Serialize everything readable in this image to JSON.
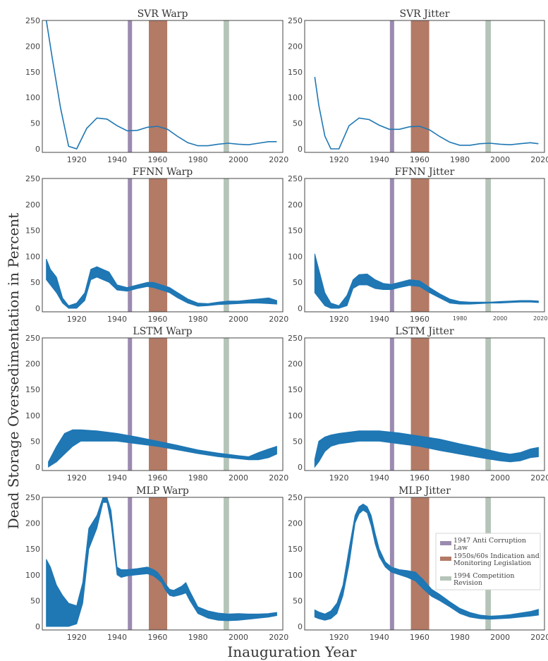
{
  "figure": {
    "ylabel": "Dead Storage Oversedimentation in Percent",
    "xlabel": "Inauguration Year"
  },
  "legend": {
    "items": [
      {
        "label_lines": [
          "1947 Anti Corruption",
          "Law"
        ],
        "color": "#9b8bb0"
      },
      {
        "label_lines": [
          "1950s/60s Indication and",
          "Monitoring Legislation"
        ],
        "color": "#b37a66"
      },
      {
        "label_lines": [
          "1994 Competition",
          "Revision"
        ],
        "color": "#b5c4b8"
      }
    ]
  },
  "chart_data": [
    {
      "type": "line",
      "title": "SVR Warp",
      "xlim": [
        1903,
        2022
      ],
      "ylim": [
        0,
        250
      ],
      "yticks": [
        0,
        50,
        100,
        150,
        200,
        250
      ],
      "xticks": [
        1920,
        1940,
        1960,
        1980,
        2000,
        2020
      ],
      "band": 0,
      "series": [
        {
          "x": [
            1905,
            1908,
            1912,
            1916,
            1920,
            1925,
            1930,
            1935,
            1940,
            1945,
            1950,
            1955,
            1960,
            1965,
            1970,
            1975,
            1980,
            1985,
            1990,
            1995,
            2000,
            2005,
            2010,
            2015,
            2019
          ],
          "y": [
            250,
            175,
            80,
            5,
            0,
            40,
            60,
            58,
            45,
            35,
            36,
            42,
            44,
            38,
            24,
            12,
            6,
            6,
            9,
            11,
            9,
            8,
            11,
            14,
            14
          ]
        }
      ]
    },
    {
      "type": "line",
      "title": "SVR Jitter",
      "xlim": [
        1903,
        2022
      ],
      "ylim": [
        0,
        250
      ],
      "yticks": [
        0,
        50,
        100,
        150,
        200,
        250
      ],
      "xticks": [
        1920,
        1940,
        1960,
        1980,
        2000,
        2020
      ],
      "band": 0,
      "series": [
        {
          "x": [
            1908,
            1910,
            1913,
            1916,
            1920,
            1925,
            1930,
            1935,
            1940,
            1945,
            1950,
            1955,
            1960,
            1965,
            1970,
            1975,
            1980,
            1985,
            1990,
            1995,
            2000,
            2005,
            2010,
            2015,
            2019
          ],
          "y": [
            140,
            85,
            25,
            0,
            0,
            45,
            60,
            57,
            46,
            38,
            38,
            43,
            44,
            37,
            24,
            13,
            7,
            7,
            10,
            11,
            9,
            8,
            10,
            12,
            10
          ]
        }
      ]
    },
    {
      "type": "band",
      "title": "FFNN Warp",
      "xlim": [
        1903,
        2022
      ],
      "ylim": [
        0,
        250
      ],
      "yticks": [
        0,
        50,
        100,
        150,
        200,
        250
      ],
      "xticks": [
        1920,
        1940,
        1960,
        1980,
        2000,
        2020
      ],
      "band": 0,
      "x": [
        1905,
        1907,
        1910,
        1913,
        1916,
        1920,
        1924,
        1927,
        1930,
        1933,
        1936,
        1940,
        1945,
        1950,
        1955,
        1958,
        1962,
        1966,
        1970,
        1975,
        1980,
        1985,
        1990,
        1995,
        2000,
        2005,
        2010,
        2015,
        2019
      ],
      "y_low": [
        55,
        45,
        30,
        10,
        0,
        0,
        15,
        55,
        60,
        55,
        50,
        35,
        33,
        38,
        42,
        40,
        35,
        30,
        20,
        10,
        4,
        5,
        7,
        8,
        9,
        10,
        10,
        9,
        8
      ],
      "y_high": [
        95,
        75,
        60,
        20,
        5,
        10,
        30,
        75,
        80,
        75,
        70,
        45,
        40,
        45,
        50,
        50,
        45,
        40,
        30,
        18,
        10,
        9,
        12,
        14,
        14,
        16,
        18,
        20,
        15
      ]
    },
    {
      "type": "band",
      "title": "FFNN Jitter",
      "xlim": [
        1903,
        2022
      ],
      "ylim": [
        0,
        250
      ],
      "yticks": [
        0,
        50,
        100,
        150,
        200,
        250
      ],
      "xticks": [
        1920,
        1940,
        1960,
        1980,
        2000,
        2020
      ],
      "xtick_sizes": [
        "large",
        "large",
        "large",
        "small",
        "small",
        "small"
      ],
      "band": 0,
      "x": [
        1908,
        1910,
        1913,
        1916,
        1920,
        1924,
        1927,
        1930,
        1934,
        1938,
        1942,
        1946,
        1950,
        1955,
        1960,
        1965,
        1970,
        1975,
        1980,
        1985,
        1990,
        1995,
        2000,
        2005,
        2010,
        2015,
        2019
      ],
      "y_low": [
        30,
        20,
        5,
        0,
        0,
        5,
        38,
        45,
        45,
        38,
        36,
        36,
        40,
        44,
        42,
        30,
        20,
        10,
        8,
        8,
        9,
        10,
        10,
        11,
        12,
        12,
        11
      ],
      "y_high": [
        105,
        75,
        30,
        10,
        5,
        25,
        55,
        65,
        66,
        55,
        48,
        46,
        50,
        55,
        53,
        40,
        28,
        18,
        13,
        12,
        12,
        12,
        13,
        14,
        15,
        15,
        14
      ]
    },
    {
      "type": "band",
      "title": "LSTM Warp",
      "xlim": [
        1903,
        2022
      ],
      "ylim": [
        0,
        250
      ],
      "yticks": [
        0,
        50,
        100,
        150,
        200,
        250
      ],
      "xticks": [
        1920,
        1940,
        1960,
        1980,
        2000,
        2020
      ],
      "band": 0,
      "x": [
        1906,
        1910,
        1914,
        1918,
        1922,
        1930,
        1940,
        1950,
        1960,
        1970,
        1980,
        1990,
        2000,
        2005,
        2010,
        2015,
        2019
      ],
      "y_low": [
        0,
        10,
        25,
        40,
        50,
        50,
        50,
        45,
        40,
        33,
        26,
        20,
        16,
        14,
        14,
        18,
        25
      ],
      "y_high": [
        10,
        40,
        65,
        72,
        72,
        70,
        65,
        58,
        50,
        42,
        33,
        27,
        22,
        20,
        28,
        35,
        40
      ]
    },
    {
      "type": "band",
      "title": "LSTM Jitter",
      "xlim": [
        1903,
        2022
      ],
      "ylim": [
        0,
        250
      ],
      "yticks": [
        0,
        50,
        100,
        150,
        200,
        250
      ],
      "xticks": [
        1920,
        1940,
        1960,
        1980,
        2000,
        2020
      ],
      "band": 0,
      "x": [
        1908,
        1910,
        1913,
        1916,
        1920,
        1930,
        1940,
        1950,
        1960,
        1970,
        1980,
        1990,
        2000,
        2005,
        2010,
        2015,
        2019
      ],
      "y_low": [
        0,
        10,
        30,
        40,
        45,
        50,
        50,
        45,
        40,
        32,
        25,
        18,
        12,
        10,
        12,
        18,
        20
      ],
      "y_high": [
        15,
        50,
        58,
        62,
        65,
        70,
        70,
        66,
        60,
        54,
        45,
        37,
        28,
        25,
        28,
        35,
        38
      ]
    },
    {
      "type": "band",
      "title": "MLP Warp",
      "xlim": [
        1903,
        2022
      ],
      "ylim": [
        0,
        250
      ],
      "yticks": [
        0,
        50,
        100,
        150,
        200,
        250
      ],
      "xticks": [
        1920,
        1940,
        1960,
        1980,
        2000,
        2020
      ],
      "band": 0,
      "x": [
        1905,
        1907,
        1910,
        1913,
        1916,
        1920,
        1923,
        1926,
        1930,
        1933,
        1935,
        1937,
        1940,
        1942,
        1945,
        1950,
        1955,
        1958,
        1960,
        1962,
        1964,
        1966,
        1968,
        1970,
        1972,
        1974,
        1976,
        1980,
        1985,
        1990,
        1995,
        2000,
        2005,
        2010,
        2015,
        2019
      ],
      "y_low": [
        0,
        0,
        0,
        0,
        0,
        5,
        45,
        150,
        190,
        240,
        240,
        200,
        100,
        95,
        98,
        100,
        102,
        98,
        92,
        85,
        70,
        60,
        58,
        60,
        62,
        65,
        50,
        25,
        16,
        12,
        11,
        12,
        14,
        16,
        18,
        21
      ],
      "y_high": [
        130,
        115,
        80,
        60,
        45,
        40,
        85,
        190,
        215,
        250,
        250,
        225,
        115,
        110,
        110,
        112,
        115,
        110,
        105,
        95,
        82,
        72,
        70,
        74,
        78,
        85,
        68,
        38,
        30,
        26,
        24,
        25,
        24,
        24,
        25,
        27
      ]
    },
    {
      "type": "band",
      "title": "MLP Jitter",
      "xlim": [
        1903,
        2022
      ],
      "ylim": [
        0,
        250
      ],
      "yticks": [
        0,
        50,
        100,
        150,
        200,
        250
      ],
      "xticks": [
        1920,
        1940,
        1960,
        1980,
        2000,
        2020
      ],
      "band": 0,
      "x": [
        1908,
        1910,
        1913,
        1916,
        1919,
        1922,
        1925,
        1928,
        1930,
        1932,
        1934,
        1936,
        1938,
        1940,
        1943,
        1946,
        1950,
        1954,
        1958,
        1962,
        1966,
        1970,
        1975,
        1980,
        1985,
        1990,
        1995,
        2000,
        2005,
        2010,
        2015,
        2019
      ],
      "y_low": [
        18,
        15,
        12,
        15,
        25,
        60,
        120,
        200,
        218,
        225,
        220,
        195,
        160,
        135,
        115,
        105,
        100,
        95,
        88,
        72,
        58,
        50,
        38,
        25,
        18,
        15,
        14,
        15,
        16,
        18,
        20,
        22
      ],
      "y_high": [
        32,
        28,
        24,
        30,
        45,
        80,
        150,
        215,
        232,
        237,
        232,
        215,
        180,
        150,
        125,
        115,
        110,
        108,
        105,
        90,
        72,
        62,
        48,
        35,
        27,
        22,
        20,
        21,
        23,
        26,
        29,
        33
      ]
    }
  ],
  "events": [
    {
      "name": "1947 Anti Corruption Law",
      "x_range": [
        1945.3,
        1947.4
      ],
      "color": "#9b8bb0"
    },
    {
      "name": "1950s/60s Indication and Monitoring Legislation",
      "x_range": [
        1955.7,
        1964.8
      ],
      "color": "#b37a66"
    },
    {
      "name": "1994 Competition Revision",
      "x_range": [
        1992.7,
        1995.4
      ],
      "color": "#b5c4b8"
    }
  ]
}
